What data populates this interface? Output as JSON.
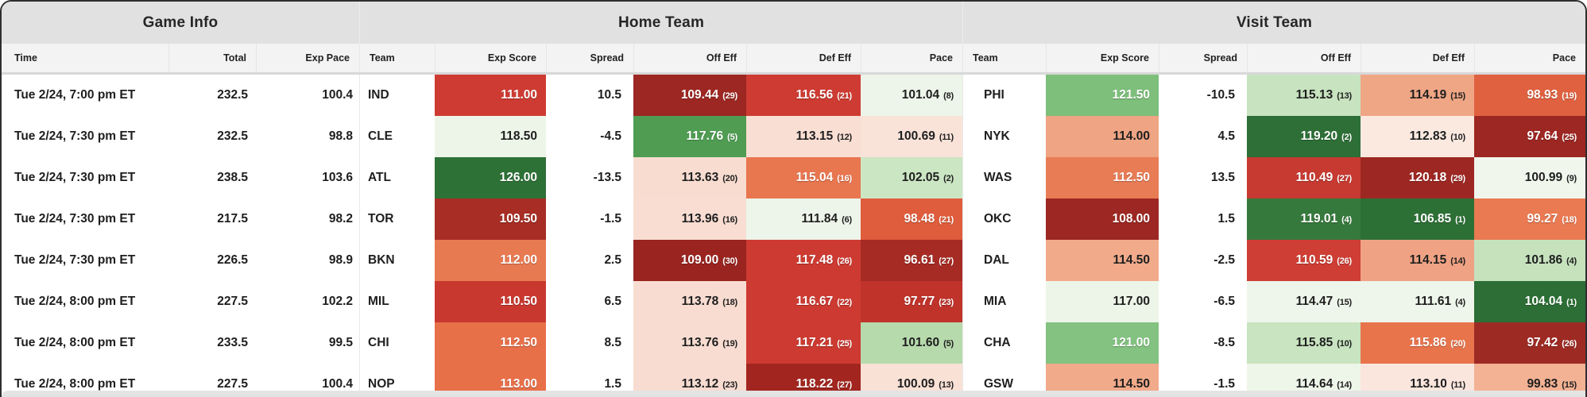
{
  "header": {
    "groups": [
      {
        "label": "Game Info"
      },
      {
        "label": "Home Team"
      },
      {
        "label": "Visit Team"
      }
    ],
    "columns": [
      "Time",
      "Total",
      "Exp Pace",
      "Team",
      "Exp Score",
      "Spread",
      "Off Eff",
      "Def Eff",
      "Pace",
      "Team",
      "Exp Score",
      "Spread",
      "Off Eff",
      "Def Eff",
      "Pace"
    ]
  },
  "rows": [
    {
      "cells": [
        {
          "t": "Tue 2/24, 7:00 pm ET"
        },
        {
          "t": "232.5"
        },
        {
          "t": "100.4"
        },
        {
          "t": "IND"
        },
        {
          "t": "111.00",
          "bg": "#ce3b32",
          "fg": "#ffffff"
        },
        {
          "t": "10.5"
        },
        {
          "t": "109.44",
          "r": "(29)",
          "bg": "#9d2722",
          "fg": "#ffffff"
        },
        {
          "t": "116.56",
          "r": "(21)",
          "bg": "#ce3b32",
          "fg": "#ffffff"
        },
        {
          "t": "101.04",
          "r": "(8)",
          "bg": "#edf4e9"
        },
        {
          "t": "PHI"
        },
        {
          "t": "121.50",
          "bg": "#7dbf7b",
          "fg": "#ffffff"
        },
        {
          "t": "-10.5"
        },
        {
          "t": "115.13",
          "r": "(13)",
          "bg": "#c7e3bf"
        },
        {
          "t": "114.19",
          "r": "(15)",
          "bg": "#efa685"
        },
        {
          "t": "98.93",
          "r": "(19)",
          "bg": "#e06140",
          "fg": "#ffffff"
        }
      ]
    },
    {
      "cells": [
        {
          "t": "Tue 2/24, 7:30 pm ET"
        },
        {
          "t": "232.5"
        },
        {
          "t": "98.8"
        },
        {
          "t": "CLE"
        },
        {
          "t": "118.50",
          "bg": "#edf5e9"
        },
        {
          "t": "-4.5"
        },
        {
          "t": "117.76",
          "r": "(5)",
          "bg": "#4f9c52",
          "fg": "#ffffff"
        },
        {
          "t": "113.15",
          "r": "(12)",
          "bg": "#f9ded3"
        },
        {
          "t": "100.69",
          "r": "(11)",
          "bg": "#f9e3d9"
        },
        {
          "t": "NYK"
        },
        {
          "t": "114.00",
          "bg": "#efa483"
        },
        {
          "t": "4.5"
        },
        {
          "t": "119.20",
          "r": "(2)",
          "bg": "#2d6f36",
          "fg": "#ffffff"
        },
        {
          "t": "112.83",
          "r": "(10)",
          "bg": "#fbe9e0"
        },
        {
          "t": "97.64",
          "r": "(25)",
          "bg": "#9d2722",
          "fg": "#ffffff"
        }
      ]
    },
    {
      "cells": [
        {
          "t": "Tue 2/24, 7:30 pm ET"
        },
        {
          "t": "238.5"
        },
        {
          "t": "103.6"
        },
        {
          "t": "ATL"
        },
        {
          "t": "126.00",
          "bg": "#2e7137",
          "fg": "#ffffff"
        },
        {
          "t": "-13.5"
        },
        {
          "t": "113.63",
          "r": "(20)",
          "bg": "#f8dcd0"
        },
        {
          "t": "115.04",
          "r": "(16)",
          "bg": "#e8764f",
          "fg": "#ffffff"
        },
        {
          "t": "102.05",
          "r": "(2)",
          "bg": "#cbe6c3"
        },
        {
          "t": "WAS"
        },
        {
          "t": "112.50",
          "bg": "#e87c55",
          "fg": "#ffffff"
        },
        {
          "t": "13.5"
        },
        {
          "t": "110.49",
          "r": "(27)",
          "bg": "#c63a31",
          "fg": "#ffffff"
        },
        {
          "t": "120.18",
          "r": "(29)",
          "bg": "#9d2722",
          "fg": "#ffffff"
        },
        {
          "t": "100.99",
          "r": "(9)",
          "bg": "#f0f6ec"
        }
      ]
    },
    {
      "cells": [
        {
          "t": "Tue 2/24, 7:30 pm ET"
        },
        {
          "t": "217.5"
        },
        {
          "t": "98.2"
        },
        {
          "t": "TOR"
        },
        {
          "t": "109.50",
          "bg": "#a72d25",
          "fg": "#ffffff"
        },
        {
          "t": "-1.5"
        },
        {
          "t": "113.96",
          "r": "(16)",
          "bg": "#f9ddd2"
        },
        {
          "t": "111.84",
          "r": "(6)",
          "bg": "#edf4e9"
        },
        {
          "t": "98.48",
          "r": "(21)",
          "bg": "#df5c3c",
          "fg": "#ffffff"
        },
        {
          "t": "OKC"
        },
        {
          "t": "108.00",
          "bg": "#9d2722",
          "fg": "#ffffff"
        },
        {
          "t": "1.5"
        },
        {
          "t": "119.01",
          "r": "(4)",
          "bg": "#36793c",
          "fg": "#ffffff"
        },
        {
          "t": "106.85",
          "r": "(1)",
          "bg": "#2d7036",
          "fg": "#ffffff"
        },
        {
          "t": "99.27",
          "r": "(18)",
          "bg": "#ea7a52",
          "fg": "#ffffff"
        }
      ]
    },
    {
      "cells": [
        {
          "t": "Tue 2/24, 7:30 pm ET"
        },
        {
          "t": "226.5"
        },
        {
          "t": "98.9"
        },
        {
          "t": "BKN"
        },
        {
          "t": "112.00",
          "bg": "#e87a52",
          "fg": "#ffffff"
        },
        {
          "t": "2.5"
        },
        {
          "t": "109.00",
          "r": "(30)",
          "bg": "#992420",
          "fg": "#ffffff"
        },
        {
          "t": "117.48",
          "r": "(26)",
          "bg": "#cd3a31",
          "fg": "#ffffff"
        },
        {
          "t": "96.61",
          "r": "(27)",
          "bg": "#a62b24",
          "fg": "#ffffff"
        },
        {
          "t": "DAL"
        },
        {
          "t": "114.50",
          "bg": "#f1aa8a"
        },
        {
          "t": "-2.5"
        },
        {
          "t": "110.59",
          "r": "(26)",
          "bg": "#ce3e34",
          "fg": "#ffffff"
        },
        {
          "t": "114.15",
          "r": "(14)",
          "bg": "#efa384"
        },
        {
          "t": "101.86",
          "r": "(4)",
          "bg": "#c5e2bd"
        }
      ]
    },
    {
      "cells": [
        {
          "t": "Tue 2/24, 8:00 pm ET"
        },
        {
          "t": "227.5"
        },
        {
          "t": "102.2"
        },
        {
          "t": "MIL"
        },
        {
          "t": "110.50",
          "bg": "#c9382f",
          "fg": "#ffffff"
        },
        {
          "t": "6.5"
        },
        {
          "t": "113.78",
          "r": "(18)",
          "bg": "#f8dcd1"
        },
        {
          "t": "116.67",
          "r": "(22)",
          "bg": "#cd3a31",
          "fg": "#ffffff"
        },
        {
          "t": "97.77",
          "r": "(23)",
          "bg": "#bf332b",
          "fg": "#ffffff"
        },
        {
          "t": "MIA"
        },
        {
          "t": "117.00",
          "bg": "#edf5e9"
        },
        {
          "t": "-6.5"
        },
        {
          "t": "114.47",
          "r": "(15)",
          "bg": "#eef5ea"
        },
        {
          "t": "111.61",
          "r": "(4)",
          "bg": "#eef5ea"
        },
        {
          "t": "104.04",
          "r": "(1)",
          "bg": "#2c6e35",
          "fg": "#ffffff"
        }
      ]
    },
    {
      "cells": [
        {
          "t": "Tue 2/24, 8:00 pm ET"
        },
        {
          "t": "233.5"
        },
        {
          "t": "99.5"
        },
        {
          "t": "CHI"
        },
        {
          "t": "112.50",
          "bg": "#e87049",
          "fg": "#ffffff"
        },
        {
          "t": "8.5"
        },
        {
          "t": "113.76",
          "r": "(19)",
          "bg": "#f8dcd1"
        },
        {
          "t": "117.21",
          "r": "(25)",
          "bg": "#cc3a31",
          "fg": "#ffffff"
        },
        {
          "t": "101.60",
          "r": "(5)",
          "bg": "#b7daac"
        },
        {
          "t": "CHA"
        },
        {
          "t": "121.00",
          "bg": "#83c280",
          "fg": "#ffffff"
        },
        {
          "t": "-8.5"
        },
        {
          "t": "115.85",
          "r": "(10)",
          "bg": "#c8e4c0"
        },
        {
          "t": "115.86",
          "r": "(20)",
          "bg": "#e8744c",
          "fg": "#ffffff"
        },
        {
          "t": "97.42",
          "r": "(26)",
          "bg": "#9e2a24",
          "fg": "#ffffff"
        }
      ]
    },
    {
      "cells": [
        {
          "t": "Tue 2/24, 8:00 pm ET"
        },
        {
          "t": "227.5"
        },
        {
          "t": "100.4"
        },
        {
          "t": "NOP"
        },
        {
          "t": "113.00",
          "bg": "#e87049",
          "fg": "#ffffff"
        },
        {
          "t": "1.5"
        },
        {
          "t": "113.12",
          "r": "(23)",
          "bg": "#f8dcd1"
        },
        {
          "t": "118.22",
          "r": "(27)",
          "bg": "#a2261f",
          "fg": "#ffffff"
        },
        {
          "t": "100.09",
          "r": "(13)",
          "bg": "#f9e1d6"
        },
        {
          "t": "GSW"
        },
        {
          "t": "114.50",
          "bg": "#f1aa8a"
        },
        {
          "t": "-1.5"
        },
        {
          "t": "114.64",
          "r": "(14)",
          "bg": "#eef5e9"
        },
        {
          "t": "113.10",
          "r": "(11)",
          "bg": "#fae6dd"
        },
        {
          "t": "99.83",
          "r": "(15)",
          "bg": "#f3b294"
        }
      ]
    }
  ]
}
